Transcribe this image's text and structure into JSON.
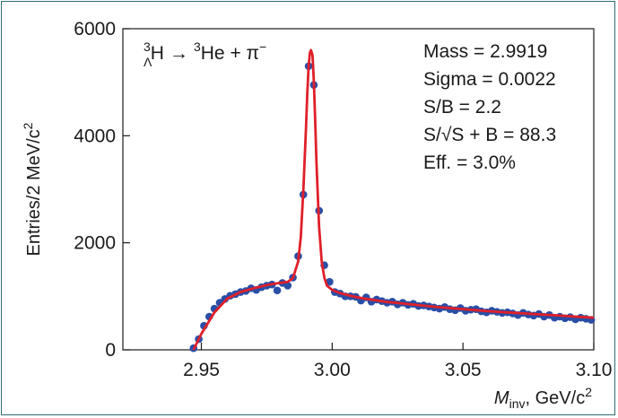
{
  "chart_data": {
    "type": "scatter",
    "xlabel_main": "M",
    "xlabel_sub": "inv",
    "xlabel_units": ", GeV/c",
    "xlabel_power": "2",
    "ylabel": "Entries/2 MeV/c",
    "ylabel_power": "2",
    "xlim": [
      2.92,
      3.1
    ],
    "ylim": [
      0,
      6000
    ],
    "xticks": [
      2.95,
      3.0,
      3.05,
      3.1
    ],
    "xtick_labels": [
      "2.95",
      "3.00",
      "3.05",
      "3.10"
    ],
    "yticks": [
      0,
      2000,
      4000,
      6000
    ],
    "ytick_labels": [
      "0",
      "2000",
      "4000",
      "6000"
    ],
    "grid": false,
    "reaction": {
      "sup1": "3",
      "sub1": "Λ",
      "particle1": "H",
      "arrow": "→",
      "sup2": "3",
      "particle2": "He + π",
      "charge": "−"
    },
    "annotations": [
      "Mass = 2.9919",
      "Sigma = 0.0022",
      "S/B = 2.2",
      "S/√S + B = 88.3",
      "Eff. = 3.0%"
    ],
    "series": [
      {
        "kind": "points",
        "color": "#2a4ea6",
        "x": [
          2.947,
          2.949,
          2.951,
          2.953,
          2.955,
          2.957,
          2.959,
          2.961,
          2.963,
          2.965,
          2.967,
          2.969,
          2.971,
          2.973,
          2.975,
          2.977,
          2.979,
          2.981,
          2.983,
          2.985,
          2.987,
          2.989,
          2.991,
          2.993,
          2.995,
          2.997,
          2.999,
          3.001,
          3.003,
          3.005,
          3.007,
          3.009,
          3.011,
          3.013,
          3.015,
          3.017,
          3.019,
          3.021,
          3.023,
          3.025,
          3.027,
          3.029,
          3.031,
          3.033,
          3.035,
          3.037,
          3.039,
          3.041,
          3.043,
          3.045,
          3.047,
          3.049,
          3.051,
          3.053,
          3.055,
          3.057,
          3.059,
          3.061,
          3.063,
          3.065,
          3.067,
          3.069,
          3.071,
          3.073,
          3.075,
          3.077,
          3.079,
          3.081,
          3.083,
          3.085,
          3.087,
          3.089,
          3.091,
          3.093,
          3.095,
          3.097,
          3.099
        ],
        "y": [
          30,
          200,
          450,
          620,
          770,
          880,
          950,
          1010,
          1040,
          1080,
          1100,
          1150,
          1120,
          1170,
          1200,
          1220,
          1110,
          1250,
          1200,
          1350,
          1750,
          2900,
          5300,
          4950,
          2600,
          1580,
          1270,
          1080,
          1050,
          1000,
          1000,
          990,
          920,
          980,
          900,
          940,
          910,
          880,
          900,
          850,
          880,
          840,
          860,
          820,
          830,
          810,
          790,
          770,
          800,
          760,
          740,
          780,
          730,
          750,
          760,
          720,
          700,
          730,
          710,
          690,
          700,
          680,
          650,
          690,
          660,
          640,
          670,
          620,
          650,
          600,
          620,
          590,
          610,
          570,
          600,
          580,
          560
        ]
      },
      {
        "kind": "fit",
        "color": "#e0202a",
        "x": [
          2.947,
          2.95,
          2.955,
          2.96,
          2.965,
          2.97,
          2.975,
          2.98,
          2.983,
          2.985,
          2.987,
          2.988,
          2.989,
          2.99,
          2.9905,
          2.991,
          2.9915,
          2.9919,
          2.9925,
          2.993,
          2.9935,
          2.994,
          2.995,
          2.996,
          2.997,
          2.998,
          3.0,
          3.003,
          3.007,
          3.012,
          3.02,
          3.03,
          3.04,
          3.05,
          3.06,
          3.07,
          3.08,
          3.09,
          3.1
        ],
        "y": [
          0,
          300,
          700,
          960,
          1080,
          1150,
          1210,
          1250,
          1270,
          1340,
          1650,
          2100,
          3000,
          4150,
          4800,
          5300,
          5550,
          5600,
          5500,
          5000,
          4300,
          3500,
          2300,
          1650,
          1350,
          1200,
          1120,
          1060,
          1010,
          960,
          900,
          850,
          800,
          760,
          720,
          690,
          660,
          630,
          600
        ]
      }
    ]
  }
}
